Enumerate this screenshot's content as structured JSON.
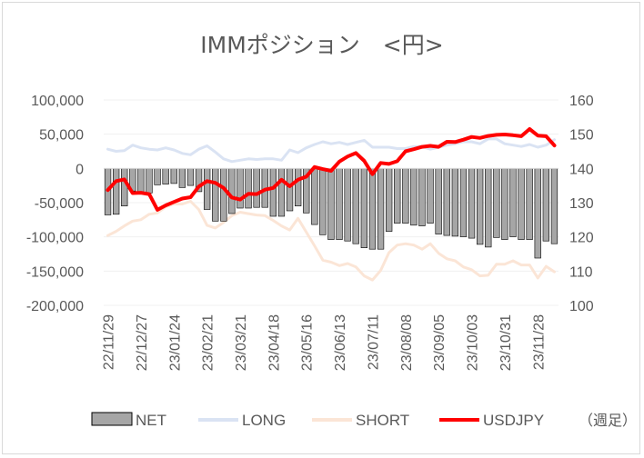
{
  "chart_data": {
    "type": "bar",
    "title": "IMMポジション　<円>",
    "note": "（週足）",
    "y_left": {
      "ylim": [
        -200000,
        100000
      ],
      "ticks": [
        "100,000",
        "50,000",
        "0",
        "-50,000",
        "-100,000",
        "-150,000",
        "-200,000"
      ]
    },
    "y_right": {
      "ylim": [
        100,
        160
      ],
      "ticks": [
        "160",
        "150",
        "140",
        "130",
        "120",
        "110",
        "100"
      ]
    },
    "x_tick_labels": [
      "22/11/29",
      "22/12/27",
      "23/01/24",
      "23/02/21",
      "23/03/21",
      "23/04/18",
      "23/05/16",
      "23/06/13",
      "23/07/11",
      "23/08/08",
      "23/09/05",
      "23/10/03",
      "23/10/31",
      "23/11/28"
    ],
    "x_tick_every": 4,
    "legend": [
      "NET",
      "LONG",
      "SHORT",
      "USDJPY"
    ],
    "colors": {
      "NET": "#a6a6a6",
      "NET_border": "#000000",
      "LONG": "#dae3f3",
      "SHORT": "#fbe5d6",
      "USDJPY": "#ff0000"
    },
    "series": [
      {
        "name": "NET",
        "axis": "left",
        "values": [
          -68000,
          -67000,
          -55000,
          -33000,
          -36000,
          -36000,
          -24000,
          -23000,
          -22000,
          -28000,
          -25000,
          -34000,
          -60000,
          -77000,
          -77000,
          -66000,
          -58000,
          -58000,
          -57000,
          -57000,
          -70000,
          -70000,
          -62000,
          -55000,
          -65000,
          -82000,
          -97000,
          -104000,
          -104000,
          -106000,
          -110000,
          -116000,
          -118000,
          -118000,
          -92000,
          -80000,
          -80000,
          -83000,
          -84000,
          -80000,
          -96000,
          -98000,
          -99000,
          -100000,
          -102000,
          -111000,
          -115000,
          -101000,
          -104000,
          -100000,
          -104000,
          -104000,
          -131000,
          -106000,
          -110000
        ]
      },
      {
        "name": "LONG",
        "axis": "left",
        "values": [
          28000,
          25000,
          26000,
          34000,
          30000,
          28000,
          27000,
          30000,
          27000,
          22000,
          20000,
          28000,
          33000,
          24000,
          14000,
          10000,
          12000,
          14000,
          13000,
          14000,
          14000,
          12000,
          27000,
          23000,
          30000,
          35000,
          39000,
          36000,
          38000,
          35000,
          38000,
          41000,
          31000,
          31000,
          31000,
          29000,
          29000,
          32000,
          32000,
          28000,
          31000,
          34000,
          36000,
          39000,
          39000,
          36000,
          43000,
          43000,
          36000,
          34000,
          32000,
          35000,
          31000,
          34000,
          42000
        ]
      },
      {
        "name": "SHORT",
        "axis": "left",
        "values": [
          -98000,
          -92000,
          -84000,
          -77000,
          -75000,
          -67000,
          -65000,
          -56000,
          -52000,
          -52000,
          -48000,
          -60000,
          -83000,
          -87000,
          -79000,
          -69000,
          -64000,
          -66000,
          -68000,
          -69000,
          -76000,
          -84000,
          -90000,
          -73000,
          -93000,
          -113000,
          -134000,
          -137000,
          -142000,
          -139000,
          -144000,
          -157000,
          -163000,
          -149000,
          -123000,
          -112000,
          -110000,
          -112000,
          -118000,
          -110000,
          -124000,
          -132000,
          -135000,
          -144000,
          -148000,
          -157000,
          -156000,
          -140000,
          -140000,
          -135000,
          -141000,
          -141000,
          -160000,
          -143000,
          -151000
        ]
      },
      {
        "name": "USDJPY",
        "axis": "right",
        "values": [
          133.7,
          136.3,
          136.8,
          132.8,
          132.9,
          132.5,
          127.9,
          129.2,
          130.2,
          131.2,
          131.6,
          134.7,
          136.3,
          135.8,
          134.3,
          131.5,
          130.9,
          132.6,
          132.5,
          133.8,
          134.3,
          136.7,
          134.8,
          136.7,
          137.6,
          140.4,
          139.8,
          139.3,
          142.0,
          143.5,
          144.5,
          142.2,
          138.3,
          141.6,
          141.3,
          142.1,
          145.0,
          145.6,
          146.3,
          146.6,
          146.3,
          147.8,
          147.7,
          148.4,
          149.2,
          148.9,
          149.5,
          149.8,
          149.9,
          149.7,
          149.4,
          151.5,
          149.6,
          149.4,
          146.7
        ]
      }
    ]
  }
}
